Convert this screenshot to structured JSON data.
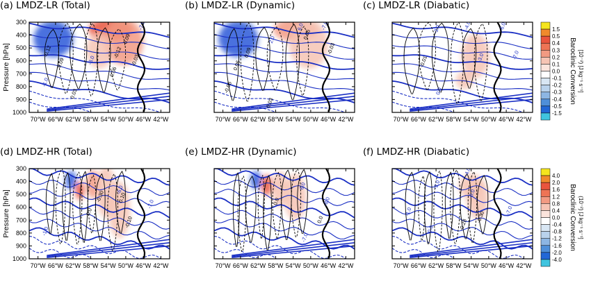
{
  "chart_data": [
    {
      "type": "contour",
      "panel_id": "a",
      "title": "(a)  LMDZ-LR (Total)",
      "ylabel": "Pressure [hPa]",
      "xticks": [
        "70°W",
        "66°W",
        "62°W",
        "58°W",
        "54°W",
        "50°W",
        "46°W",
        "42°W"
      ],
      "yticks": [
        "300",
        "400",
        "500",
        "600",
        "700",
        "800",
        "900",
        "1000"
      ],
      "ylim": [
        300,
        1000
      ],
      "grid": false,
      "shading": {
        "variable": "Baroclinic Conversion",
        "range": [
          -1.5,
          1.5
        ]
      },
      "shade_blobs": [
        {
          "lon": -66.5,
          "p": 430,
          "rx": 4.5,
          "rp": 140,
          "value": -1.0
        },
        {
          "lon": -53.5,
          "p": 360,
          "rx": 5.0,
          "rp": 90,
          "value": 0.8
        },
        {
          "lon": -50.5,
          "p": 450,
          "rx": 4.5,
          "rp": 180,
          "value": 0.5
        },
        {
          "lon": -56.0,
          "p": 520,
          "rx": 3.0,
          "rp": 140,
          "value": 0.3
        }
      ],
      "contour_labels": [
        {
          "lon": -67.5,
          "p": 530,
          "text": "-0.12",
          "color": "black"
        },
        {
          "lon": -64.5,
          "p": 620,
          "text": "0.09",
          "color": "black"
        },
        {
          "lon": -57.5,
          "p": 600,
          "text": "-3.0",
          "color": "blue"
        },
        {
          "lon": -51.5,
          "p": 540,
          "text": "-0.12",
          "color": "black"
        },
        {
          "lon": -49.5,
          "p": 440,
          "text": "-0.09",
          "color": "black"
        },
        {
          "lon": -47.5,
          "p": 600,
          "text": "-0.03",
          "color": "black"
        },
        {
          "lon": -52.5,
          "p": 690,
          "text": "0.06",
          "color": "black"
        },
        {
          "lon": -61.5,
          "p": 860,
          "text": "0.03",
          "color": "black"
        },
        {
          "lon": -46.0,
          "p": 330,
          "text": "-7.0",
          "color": "blue"
        },
        {
          "lon": -68.0,
          "p": 770,
          "text": "-1.0",
          "color": "blue"
        }
      ]
    },
    {
      "type": "contour",
      "panel_id": "b",
      "title": "(b)  LMDZ-LR (Dynamic)",
      "xticks": [
        "70°W",
        "66°W",
        "62°W",
        "58°W",
        "54°W",
        "50°W",
        "46°W",
        "42°W"
      ],
      "ylim": [
        300,
        1000
      ],
      "shading": {
        "variable": "Baroclinic Conversion",
        "range": [
          -1.5,
          1.5
        ]
      },
      "shade_blobs": [
        {
          "lon": -66.5,
          "p": 430,
          "rx": 4.5,
          "rp": 140,
          "value": -1.0
        },
        {
          "lon": -53.5,
          "p": 360,
          "rx": 5.0,
          "rp": 90,
          "value": 0.6
        },
        {
          "lon": -50.5,
          "p": 470,
          "rx": 4.5,
          "rp": 190,
          "value": 0.3
        }
      ],
      "contour_labels": [
        {
          "lon": -66.5,
          "p": 640,
          "text": "0.06",
          "color": "black"
        },
        {
          "lon": -64.0,
          "p": 540,
          "text": "0.09",
          "color": "black"
        },
        {
          "lon": -58.5,
          "p": 440,
          "text": "2.0",
          "color": "blue"
        },
        {
          "lon": -50.5,
          "p": 400,
          "text": "0.06",
          "color": "black"
        },
        {
          "lon": -45.0,
          "p": 510,
          "text": "-0.03",
          "color": "black"
        },
        {
          "lon": -52.0,
          "p": 340,
          "text": "6.0",
          "color": "blue"
        },
        {
          "lon": -46.5,
          "p": 330,
          "text": "-7.0",
          "color": "blue"
        },
        {
          "lon": -59.0,
          "p": 930,
          "text": "0.03",
          "color": "black"
        },
        {
          "lon": -68.5,
          "p": 810,
          "text": "-0.06",
          "color": "black"
        }
      ]
    },
    {
      "type": "contour",
      "panel_id": "c",
      "title": "(c)  LMDZ-LR (Diabatic)",
      "xticks": [
        "70°W",
        "66°W",
        "62°W",
        "58°W",
        "54°W",
        "50°W",
        "46°W",
        "42°W"
      ],
      "ylim": [
        300,
        1000
      ],
      "shading": {
        "variable": "Baroclinic Conversion",
        "range": [
          -1.5,
          1.5
        ]
      },
      "shade_blobs": [
        {
          "lon": -53.0,
          "p": 560,
          "rx": 3.2,
          "rp": 170,
          "value": 0.3
        },
        {
          "lon": -55.5,
          "p": 750,
          "rx": 2.0,
          "rp": 70,
          "value": 0.2
        }
      ],
      "contour_labels": [
        {
          "lon": -61.5,
          "p": 360,
          "text": "-3.0",
          "color": "blue"
        },
        {
          "lon": -54.5,
          "p": 330,
          "text": "-4.0",
          "color": "blue"
        },
        {
          "lon": -46.5,
          "p": 340,
          "text": "-6.0",
          "color": "blue"
        },
        {
          "lon": -51.5,
          "p": 580,
          "text": "-3.0",
          "color": "blue"
        },
        {
          "lon": -43.5,
          "p": 560,
          "text": "-7.0",
          "color": "blue"
        },
        {
          "lon": -61.0,
          "p": 840,
          "text": "0.0",
          "color": "blue"
        },
        {
          "lon": -64.5,
          "p": 610,
          "text": "-0.01",
          "color": "black"
        }
      ]
    },
    {
      "type": "contour",
      "panel_id": "d",
      "title": "(d)  LMDZ-HR (Total)",
      "ylabel": "Pressure [hPa]",
      "xticks": [
        "70°W",
        "66°W",
        "62°W",
        "58°W",
        "54°W",
        "50°W",
        "46°W",
        "42°W"
      ],
      "yticks": [
        "300",
        "400",
        "500",
        "600",
        "700",
        "800",
        "900",
        "1000"
      ],
      "ylim": [
        300,
        1000
      ],
      "shading": {
        "variable": "Baroclinic Conversion",
        "range": [
          -4.0,
          4.0
        ]
      },
      "shade_blobs": [
        {
          "lon": -62.5,
          "p": 390,
          "rx": 1.2,
          "rp": 70,
          "value": -3.0
        },
        {
          "lon": -60.5,
          "p": 470,
          "rx": 1.0,
          "rp": 70,
          "value": 2.0
        },
        {
          "lon": -57.5,
          "p": 420,
          "rx": 1.5,
          "rp": 110,
          "value": 1.5
        },
        {
          "lon": -54.5,
          "p": 480,
          "rx": 2.2,
          "rp": 200,
          "value": 0.8
        },
        {
          "lon": -51.5,
          "p": 620,
          "rx": 2.5,
          "rp": 220,
          "value": 0.5
        }
      ],
      "contour_labels": [
        {
          "lon": -55.5,
          "p": 520,
          "text": "-0.30",
          "color": "black"
        },
        {
          "lon": -50.5,
          "p": 530,
          "text": "0.10",
          "color": "black"
        },
        {
          "lon": -51.0,
          "p": 470,
          "text": "-6.0",
          "color": "blue"
        },
        {
          "lon": -49.0,
          "p": 720,
          "text": "-0.10",
          "color": "black"
        },
        {
          "lon": -44.0,
          "p": 580,
          "text": "-7.0",
          "color": "blue"
        },
        {
          "lon": -68.0,
          "p": 790,
          "text": "-1.0",
          "color": "blue"
        },
        {
          "lon": -58.0,
          "p": 640,
          "text": "0.0",
          "color": "black"
        }
      ]
    },
    {
      "type": "contour",
      "panel_id": "e",
      "title": "(e)  LMDZ-HR  (Dynamic)",
      "xticks": [
        "70°W",
        "66°W",
        "62°W",
        "58°W",
        "54°W",
        "50°W",
        "46°W",
        "42°W"
      ],
      "ylim": [
        300,
        1000
      ],
      "shading": {
        "variable": "Baroclinic Conversion",
        "range": [
          -4.0,
          4.0
        ]
      },
      "shade_blobs": [
        {
          "lon": -62.5,
          "p": 390,
          "rx": 1.2,
          "rp": 70,
          "value": -3.0
        },
        {
          "lon": -60.0,
          "p": 430,
          "rx": 1.2,
          "rp": 80,
          "value": 1.8
        },
        {
          "lon": -57.0,
          "p": 460,
          "rx": 1.8,
          "rp": 140,
          "value": 0.8
        },
        {
          "lon": -53.5,
          "p": 520,
          "rx": 2.5,
          "rp": 180,
          "value": 0.3
        }
      ],
      "contour_labels": [
        {
          "lon": -57.5,
          "p": 560,
          "text": "0.0",
          "color": "black"
        },
        {
          "lon": -51.5,
          "p": 440,
          "text": "6.0",
          "color": "blue"
        },
        {
          "lon": -46.0,
          "p": 560,
          "text": "-8.0",
          "color": "blue"
        },
        {
          "lon": -51.0,
          "p": 840,
          "text": "-7.0",
          "color": "blue"
        },
        {
          "lon": -47.5,
          "p": 700,
          "text": "0.0",
          "color": "black"
        }
      ]
    },
    {
      "type": "contour",
      "panel_id": "f",
      "title": "(f)  LMDZ-HR (Diabatic)",
      "xticks": [
        "70°W",
        "66°W",
        "62°W",
        "58°W",
        "54°W",
        "50°W",
        "46°W",
        "42°W"
      ],
      "ylim": [
        300,
        1000
      ],
      "shading": {
        "variable": "Baroclinic Conversion",
        "range": [
          -4.0,
          4.0
        ]
      },
      "shade_blobs": [
        {
          "lon": -54.0,
          "p": 440,
          "rx": 2.8,
          "rp": 100,
          "value": 0.9
        },
        {
          "lon": -52.5,
          "p": 530,
          "rx": 2.5,
          "rp": 160,
          "value": 0.4
        }
      ],
      "contour_labels": [
        {
          "lon": -61.5,
          "p": 430,
          "text": "-3.0",
          "color": "blue"
        },
        {
          "lon": -54.5,
          "p": 330,
          "text": "-4.0",
          "color": "blue"
        },
        {
          "lon": -53.5,
          "p": 500,
          "text": "-6.0",
          "color": "blue"
        },
        {
          "lon": -68.0,
          "p": 640,
          "text": "-1.0",
          "color": "blue"
        },
        {
          "lon": -55.5,
          "p": 740,
          "text": "-0.28",
          "color": "black"
        },
        {
          "lon": -51.5,
          "p": 680,
          "text": "-0.30",
          "color": "black"
        },
        {
          "lon": -45.0,
          "p": 630,
          "text": "-7.0",
          "color": "blue"
        },
        {
          "lon": -63.0,
          "p": 780,
          "text": "-0.0",
          "color": "blue"
        }
      ]
    }
  ],
  "colorbars": [
    {
      "label": "Baroclinic Conversion",
      "unit_label": "[10⁻²) [J kg⁻¹ s⁻¹]",
      "levels": [
        "1.5",
        "0.5",
        "0.4",
        "0.3",
        "0.2",
        "0.1",
        "0.0",
        "-0.1",
        "-0.2",
        "-0.3",
        "-0.4",
        "-0.5",
        "-1.5"
      ],
      "colors": [
        "#f5e51e",
        "#f08a2c",
        "#e9543d",
        "#ee7455",
        "#f29a82",
        "#f6c4b4",
        "#fbe4dc",
        "#ffffff",
        "#d8e6f3",
        "#b9d2ec",
        "#8db6e3",
        "#4f8fd9",
        "#2267d6",
        "#40c4df"
      ]
    },
    {
      "label": "Baroclinic Conversion",
      "unit_label": "(10⁻²) [J kg⁻¹ s⁻¹]",
      "levels": [
        "4.0",
        "2.0",
        "1.6",
        "1.2",
        "0.8",
        "0.4",
        "0.0",
        "-0.4",
        "-0.8",
        "-1.2",
        "-1.6",
        "-2.0",
        "-4.0"
      ],
      "colors": [
        "#f5e51e",
        "#f08a2c",
        "#e9543d",
        "#ee7455",
        "#f29a82",
        "#f6c4b4",
        "#fbe4dc",
        "#ffffff",
        "#d8e6f3",
        "#b9d2ec",
        "#8db6e3",
        "#4f8fd9",
        "#2267d6",
        "#40c4df"
      ]
    }
  ]
}
